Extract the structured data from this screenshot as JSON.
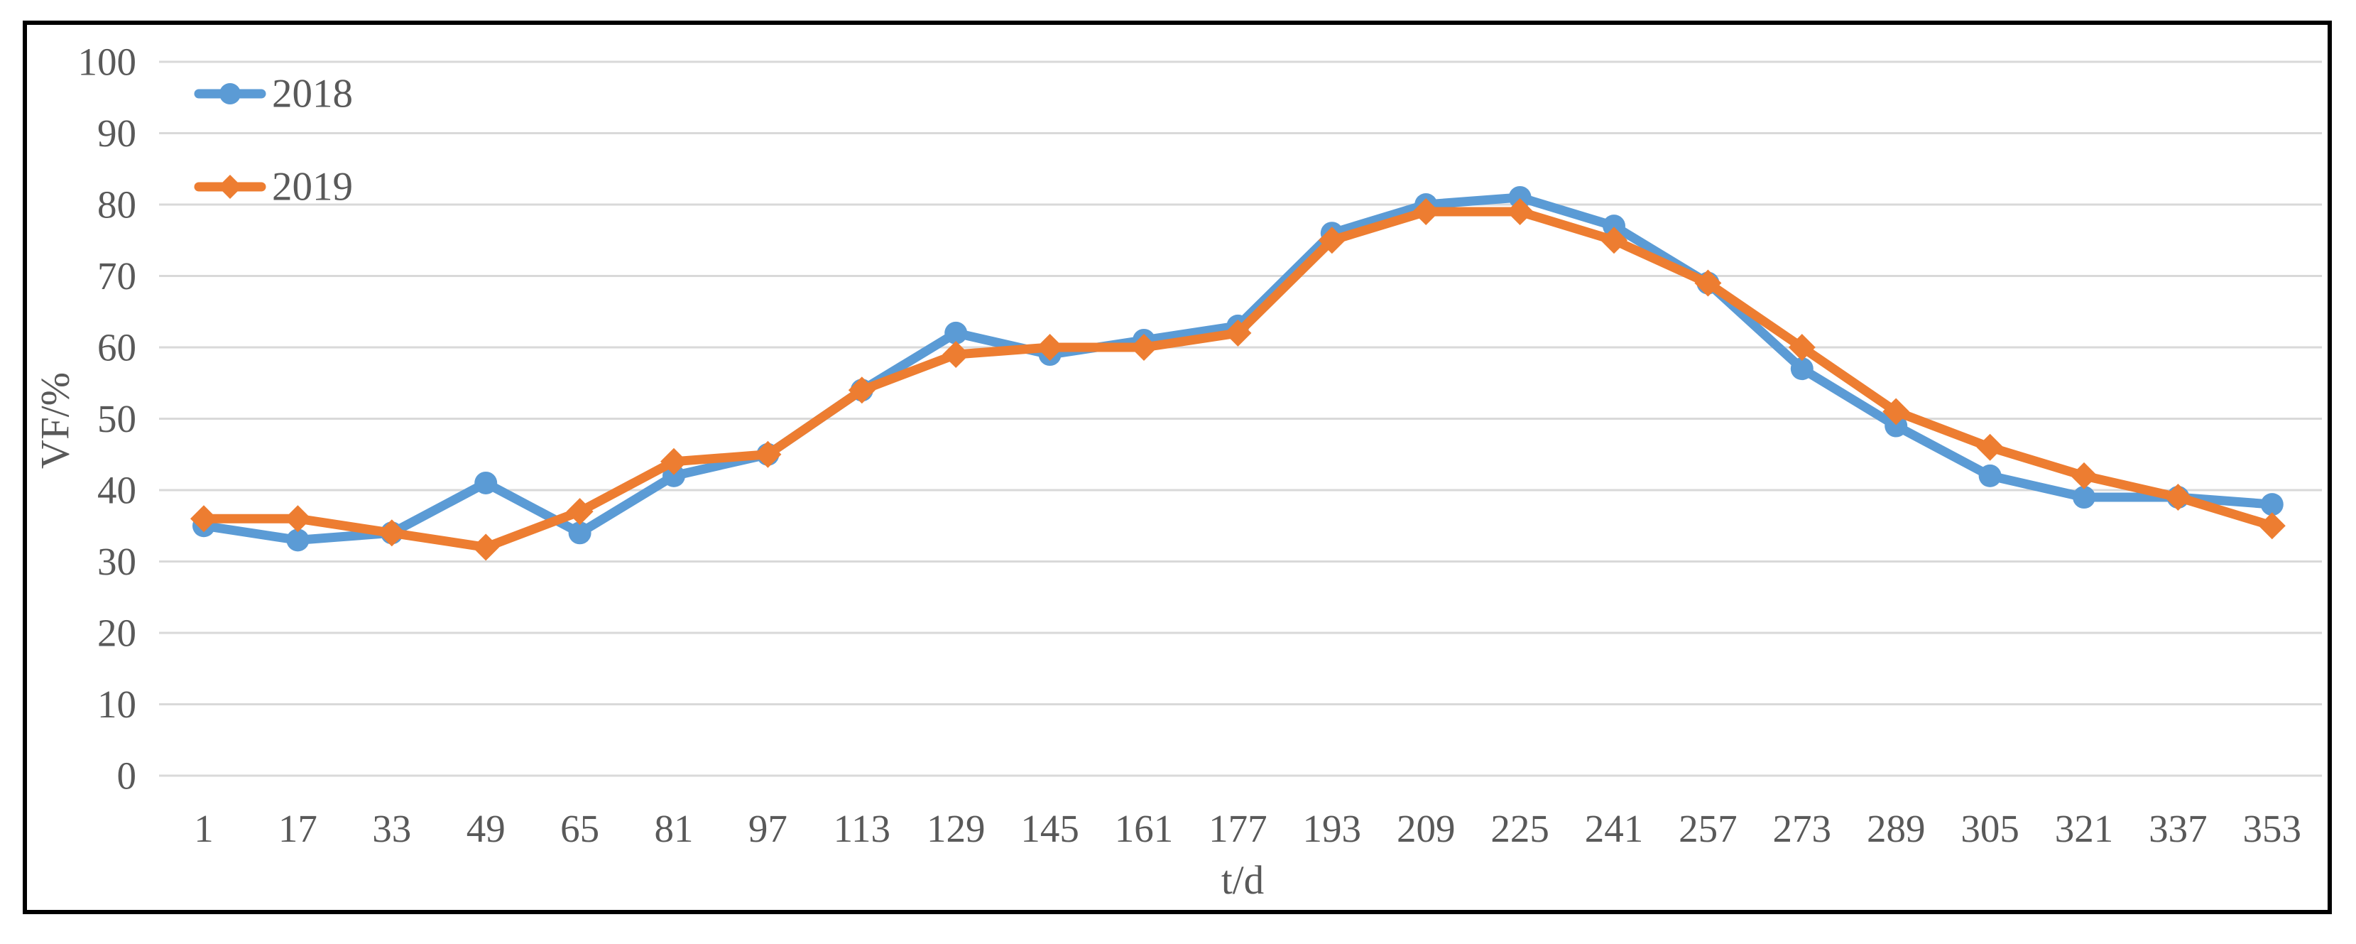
{
  "chart_data": {
    "type": "line",
    "title": "",
    "xlabel": "t/d",
    "ylabel": "VF/%",
    "x": [
      1,
      17,
      33,
      49,
      65,
      81,
      97,
      113,
      129,
      145,
      161,
      177,
      193,
      209,
      225,
      241,
      257,
      273,
      289,
      305,
      321,
      337,
      353
    ],
    "series": [
      {
        "name": "2018",
        "marker": "circle",
        "color": "#5B9BD5",
        "values": [
          35,
          33,
          34,
          41,
          34,
          42,
          45,
          54,
          62,
          59,
          61,
          63,
          76,
          80,
          81,
          77,
          69,
          57,
          49,
          42,
          39,
          39,
          38
        ]
      },
      {
        "name": "2019",
        "marker": "diamond",
        "color": "#ED7D31",
        "values": [
          36,
          36,
          34,
          32,
          37,
          44,
          45,
          54,
          59,
          60,
          60,
          62,
          75,
          79,
          79,
          75,
          69,
          60,
          51,
          46,
          42,
          39,
          35
        ]
      }
    ],
    "ylim": [
      0,
      100
    ],
    "yticks": [
      0,
      10,
      20,
      30,
      40,
      50,
      60,
      70,
      80,
      90,
      100
    ],
    "grid": true,
    "legend_position": "top-left-inside"
  },
  "styles": {
    "background": "#FFFFFF",
    "frame_color": "#000000",
    "grid_color": "#D9D9D9",
    "text_color": "#595959",
    "series_2018_color": "#5B9BD5",
    "series_2019_color": "#ED7D31"
  }
}
